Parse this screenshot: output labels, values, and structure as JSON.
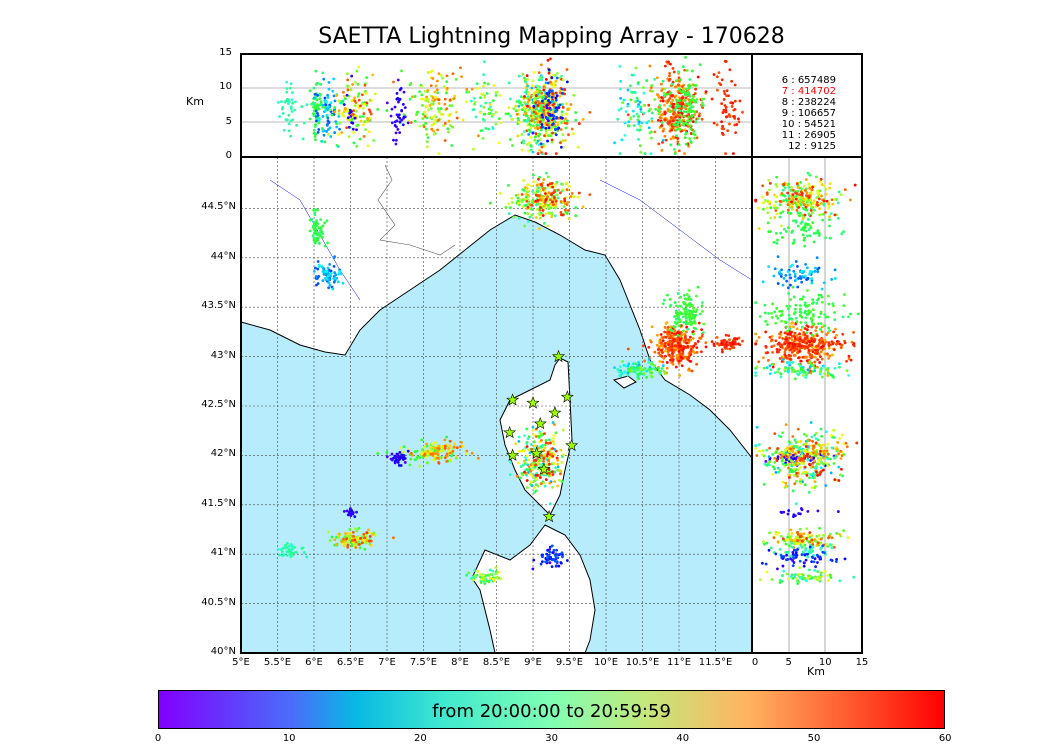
{
  "title": "SAETTA Lightning Mapping Array - 170628",
  "legend": [
    {
      "label": "6 :  657489",
      "color": "#000000"
    },
    {
      "label": "7 :  414702",
      "color": "#ff0000"
    },
    {
      "label": "8 :  238224",
      "color": "#000000"
    },
    {
      "label": "9 :  106657",
      "color": "#000000"
    },
    {
      "label": "10 :    54521",
      "color": "#000000"
    },
    {
      "label": "11 :    26905",
      "color": "#000000"
    },
    {
      "label": "12 :     9125",
      "color": "#000000"
    }
  ],
  "axes": {
    "top_ylabel": "Km",
    "top_yticks": [
      "15",
      "10",
      "5",
      "0"
    ],
    "lat_ticks": [
      "44.5°N",
      "44°N",
      "43.5°N",
      "43°N",
      "42.5°N",
      "42°N",
      "41.5°N",
      "41°N",
      "40.5°N",
      "40°N"
    ],
    "lon_ticks": [
      "5°E",
      "5.5°E",
      "6°E",
      "6.5°E",
      "7°E",
      "7.5°E",
      "8°E",
      "8.5°E",
      "9°E",
      "9.5°E",
      "10°E",
      "10.5°E",
      "11°E",
      "11.5°E"
    ],
    "right_xticks": [
      "0",
      "5",
      "10",
      "15"
    ],
    "right_xlabel": "Km"
  },
  "colorbar": {
    "label": "from 20:00:00 to 20:59:59",
    "ticks": [
      "0",
      "10",
      "20",
      "30",
      "40",
      "50",
      "60"
    ]
  },
  "chart_data": {
    "type": "scatter",
    "lon_range": [
      5,
      12
    ],
    "lat_range": [
      40,
      45
    ],
    "alt_range_km": [
      0,
      15
    ],
    "time_range_min": [
      0,
      60
    ],
    "clusters": [
      {
        "lon": 9.15,
        "lat": 44.6,
        "slon": 0.2,
        "slat": 0.1,
        "t": [
          25,
          60
        ],
        "n": 260
      },
      {
        "lon": 6.05,
        "lat": 44.28,
        "slon": 0.05,
        "slat": 0.08,
        "t": [
          28,
          34
        ],
        "n": 60
      },
      {
        "lon": 6.2,
        "lat": 43.82,
        "slon": 0.1,
        "slat": 0.07,
        "t": [
          10,
          20
        ],
        "n": 70
      },
      {
        "lon": 10.95,
        "lat": 43.1,
        "slon": 0.15,
        "slat": 0.1,
        "t": [
          50,
          60
        ],
        "n": 300
      },
      {
        "lon": 11.1,
        "lat": 43.45,
        "slon": 0.1,
        "slat": 0.1,
        "t": [
          28,
          36
        ],
        "n": 120
      },
      {
        "lon": 11.65,
        "lat": 43.13,
        "slon": 0.08,
        "slat": 0.03,
        "t": [
          55,
          60
        ],
        "n": 60
      },
      {
        "lon": 10.45,
        "lat": 42.86,
        "slon": 0.15,
        "slat": 0.04,
        "t": [
          15,
          40
        ],
        "n": 90
      },
      {
        "lon": 7.65,
        "lat": 42.02,
        "slon": 0.2,
        "slat": 0.05,
        "t": [
          30,
          56
        ],
        "n": 150
      },
      {
        "lon": 7.15,
        "lat": 41.97,
        "slon": 0.06,
        "slat": 0.03,
        "t": [
          2,
          6
        ],
        "n": 40
      },
      {
        "lon": 9.1,
        "lat": 41.95,
        "slon": 0.15,
        "slat": 0.15,
        "t": [
          15,
          60
        ],
        "n": 260
      },
      {
        "lon": 6.55,
        "lat": 41.15,
        "slon": 0.15,
        "slat": 0.04,
        "t": [
          30,
          58
        ],
        "n": 120
      },
      {
        "lon": 5.65,
        "lat": 41.04,
        "slon": 0.08,
        "slat": 0.03,
        "t": [
          22,
          28
        ],
        "n": 40
      },
      {
        "lon": 8.35,
        "lat": 40.77,
        "slon": 0.1,
        "slat": 0.03,
        "t": [
          20,
          48
        ],
        "n": 60
      },
      {
        "lon": 9.25,
        "lat": 40.97,
        "slon": 0.1,
        "slat": 0.05,
        "t": [
          3,
          12
        ],
        "n": 60
      },
      {
        "lon": 6.5,
        "lat": 41.42,
        "slon": 0.03,
        "slat": 0.02,
        "t": [
          3,
          6
        ],
        "n": 15
      }
    ],
    "stations": [
      [
        9.35,
        43.0
      ],
      [
        8.72,
        42.56
      ],
      [
        9.0,
        42.53
      ],
      [
        9.47,
        42.59
      ],
      [
        9.3,
        42.43
      ],
      [
        9.1,
        42.32
      ],
      [
        8.68,
        42.23
      ],
      [
        9.53,
        42.1
      ],
      [
        8.72,
        42.0
      ],
      [
        9.05,
        42.02
      ],
      [
        9.15,
        41.86
      ],
      [
        9.22,
        41.38
      ]
    ]
  }
}
